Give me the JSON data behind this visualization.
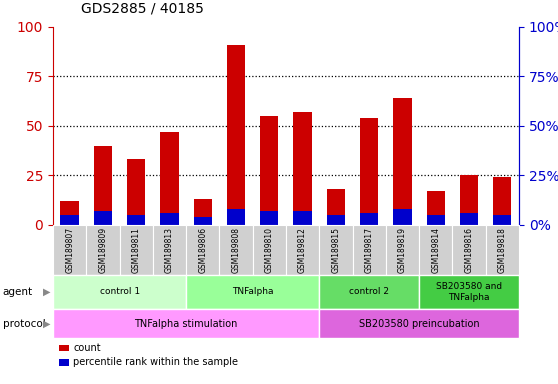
{
  "title": "GDS2885 / 40185",
  "samples": [
    "GSM189807",
    "GSM189809",
    "GSM189811",
    "GSM189813",
    "GSM189806",
    "GSM189808",
    "GSM189810",
    "GSM189812",
    "GSM189815",
    "GSM189817",
    "GSM189819",
    "GSM189814",
    "GSM189816",
    "GSM189818"
  ],
  "count_values": [
    12,
    40,
    33,
    47,
    13,
    91,
    55,
    57,
    18,
    54,
    64,
    17,
    25,
    24
  ],
  "percentile_values": [
    5,
    7,
    5,
    6,
    4,
    8,
    7,
    7,
    5,
    6,
    8,
    5,
    6,
    5
  ],
  "bar_width": 0.55,
  "count_color": "#cc0000",
  "percentile_color": "#0000cc",
  "ylim_left": [
    0,
    100
  ],
  "ylim_right": [
    0,
    100
  ],
  "yticks": [
    0,
    25,
    50,
    75,
    100
  ],
  "agent_groups": [
    {
      "label": "control 1",
      "start": 0,
      "end": 4,
      "color": "#ccffcc"
    },
    {
      "label": "TNFalpha",
      "start": 4,
      "end": 8,
      "color": "#99ff99"
    },
    {
      "label": "control 2",
      "start": 8,
      "end": 11,
      "color": "#66dd66"
    },
    {
      "label": "SB203580 and\nTNFalpha",
      "start": 11,
      "end": 14,
      "color": "#44cc44"
    }
  ],
  "protocol_groups": [
    {
      "label": "TNFalpha stimulation",
      "start": 0,
      "end": 8,
      "color": "#ff99ff"
    },
    {
      "label": "SB203580 preincubation",
      "start": 8,
      "end": 14,
      "color": "#dd66dd"
    }
  ],
  "agent_label": "agent",
  "protocol_label": "protocol",
  "legend_count_label": "count",
  "legend_percentile_label": "percentile rank within the sample",
  "bg_color": "#ffffff",
  "plot_bg_color": "#ffffff",
  "xticklabel_color": "#333333",
  "left_axis_color": "#cc0000",
  "right_axis_color": "#0000cc",
  "xtick_bg_color": "#d0d0d0"
}
